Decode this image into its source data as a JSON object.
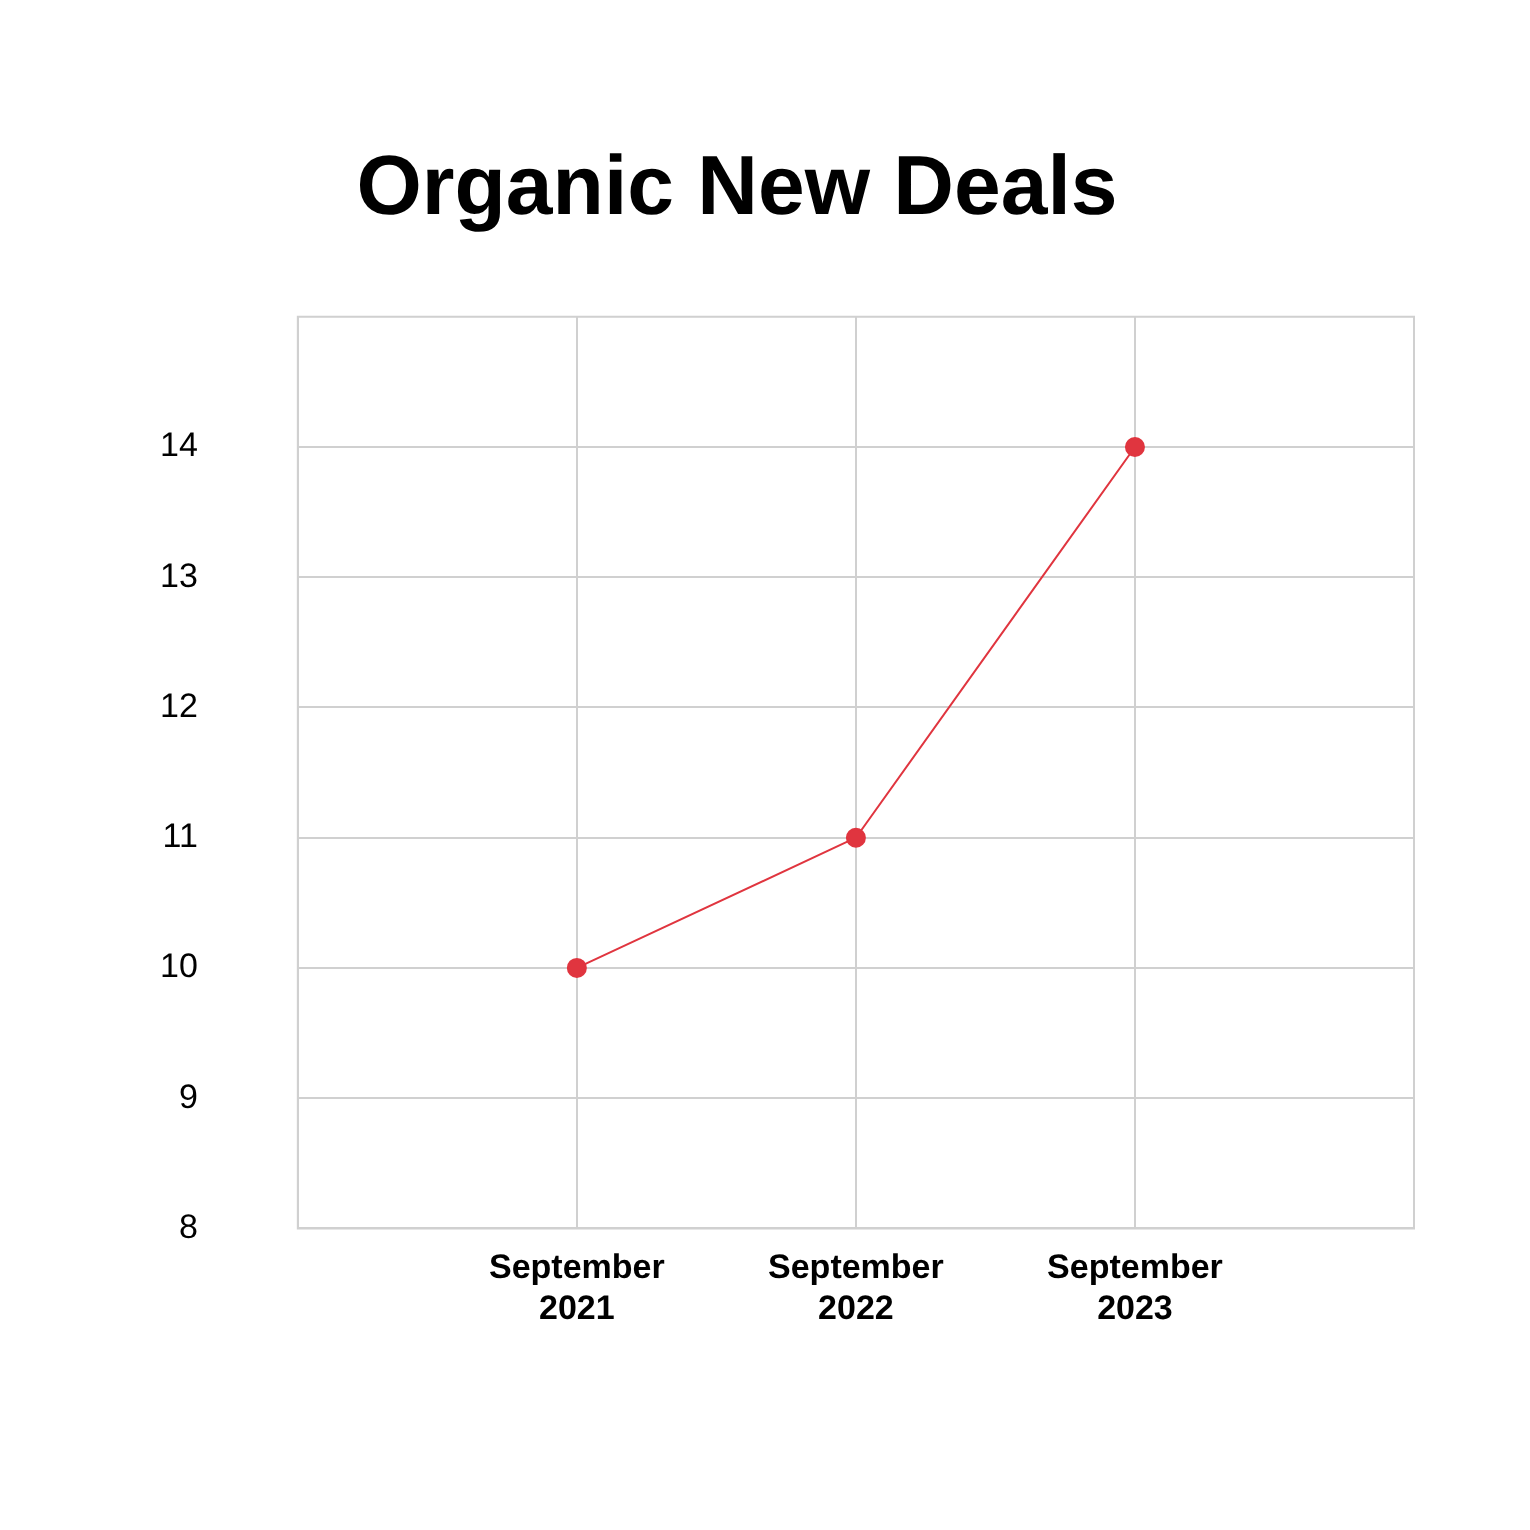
{
  "chart_data": {
    "type": "line",
    "title": "Organic New Deals",
    "categories": [
      null,
      "September 2021",
      "September 2022",
      "September 2023",
      null
    ],
    "series": [
      {
        "color": "#e0353f",
        "values": [
          null,
          10,
          11,
          14,
          null
        ]
      }
    ],
    "ylim": [
      8,
      15
    ],
    "yticks": [
      8,
      9,
      10,
      11,
      12,
      13,
      14
    ],
    "grid": true,
    "legend": false,
    "marker": "circle",
    "line_style": "solid"
  }
}
